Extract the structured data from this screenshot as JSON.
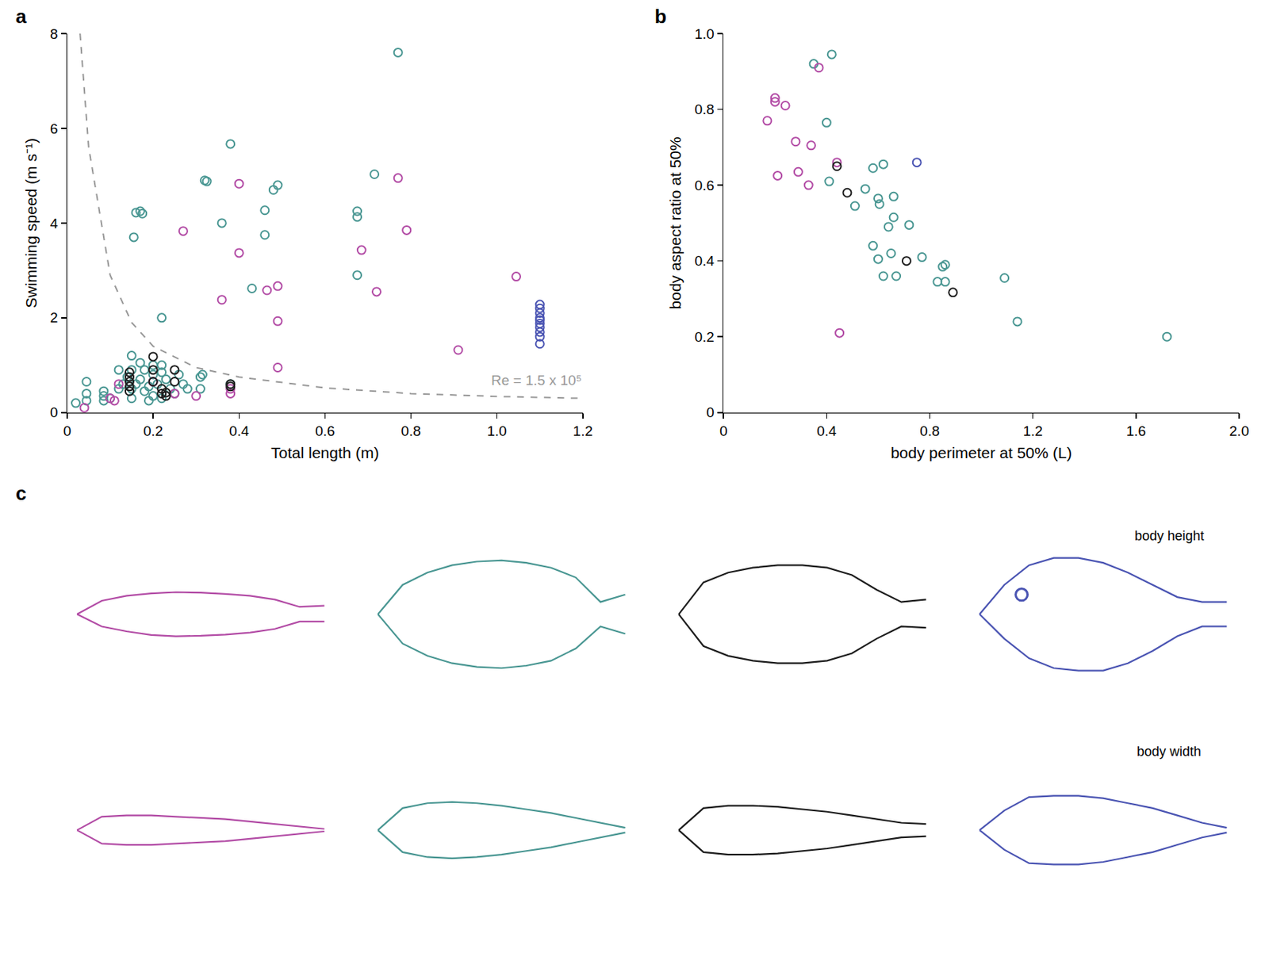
{
  "chart_data": [
    {
      "type": "scatter",
      "panel_label": "a",
      "x_label": "Total length (m)",
      "y_label": "Swimming speed (m s⁻¹)",
      "xlim": [
        0,
        1.2
      ],
      "ylim": [
        0,
        8
      ],
      "xticks": [
        0,
        0.2,
        0.4,
        0.6,
        0.8,
        {
          "value": 1,
          "label": "1.0"
        },
        1.2
      ],
      "yticks": [
        0,
        2,
        4,
        6,
        8
      ],
      "grid": false,
      "annotations": [
        "Re = 1.5 x 10⁵"
      ],
      "series": [
        {
          "color": "#4a9793",
          "marker": "circle-open",
          "x": [
            0.77,
            0.38,
            0.32,
            0.325,
            0.49,
            0.48,
            0.715,
            0.46,
            0.675,
            0.675,
            0.16,
            0.17,
            0.175,
            0.155,
            0.36,
            0.46,
            0.675,
            0.43,
            0.22,
            0.15,
            0.2,
            0.02,
            0.045,
            0.045,
            0.045,
            0.085,
            0.085,
            0.085,
            0.1,
            0.12,
            0.12,
            0.13,
            0.14,
            0.15,
            0.15,
            0.15,
            0.16,
            0.17,
            0.18,
            0.18,
            0.19,
            0.19,
            0.2,
            0.2,
            0.21,
            0.22,
            0.22,
            0.23,
            0.24,
            0.25,
            0.26,
            0.27,
            0.28,
            0.31,
            0.315,
            0.31,
            0.38,
            0.22,
            0.17
          ],
          "values": [
            7.6,
            5.67,
            4.9,
            4.88,
            4.8,
            4.7,
            5.03,
            4.27,
            4.25,
            4.13,
            4.22,
            4.25,
            4.2,
            3.7,
            4.0,
            3.75,
            2.9,
            2.62,
            2.0,
            1.2,
            1.0,
            0.2,
            0.65,
            0.4,
            0.25,
            0.45,
            0.35,
            0.25,
            0.3,
            0.5,
            0.9,
            0.6,
            0.75,
            0.9,
            0.5,
            0.3,
            0.6,
            0.7,
            0.45,
            0.9,
            0.25,
            0.55,
            0.8,
            0.35,
            0.6,
            0.3,
            1.0,
            0.7,
            0.5,
            0.4,
            0.8,
            0.6,
            0.5,
            0.75,
            0.8,
            0.5,
            0.6,
            0.85,
            1.05
          ]
        },
        {
          "color": "#b34da6",
          "marker": "circle-open",
          "x": [
            0.4,
            0.77,
            0.27,
            0.79,
            0.685,
            0.4,
            1.045,
            0.49,
            0.465,
            0.72,
            0.36,
            0.49,
            0.91,
            0.49,
            0.04,
            0.1,
            0.11,
            0.12,
            0.25,
            0.3,
            0.38,
            0.38,
            0.2
          ],
          "values": [
            4.83,
            4.95,
            3.83,
            3.85,
            3.43,
            3.37,
            2.87,
            2.67,
            2.58,
            2.55,
            2.38,
            1.93,
            1.32,
            0.95,
            0.1,
            0.3,
            0.25,
            0.6,
            0.4,
            0.35,
            0.4,
            0.5,
            0.65
          ]
        },
        {
          "color": "#1e1e1e",
          "marker": "circle-open",
          "x": [
            0.2,
            0.2,
            0.25,
            0.145,
            0.145,
            0.145,
            0.145,
            0.145,
            0.2,
            0.22,
            0.23,
            0.23,
            0.25,
            0.38,
            0.38,
            0.22
          ],
          "values": [
            1.18,
            0.9,
            0.9,
            0.85,
            0.75,
            0.65,
            0.55,
            0.45,
            0.65,
            0.5,
            0.35,
            0.42,
            0.65,
            0.55,
            0.6,
            0.4
          ]
        },
        {
          "color": "#4b55b3",
          "marker": "circle-open",
          "x": [
            1.1,
            1.1,
            1.1,
            1.1,
            1.1,
            1.1,
            1.1,
            1.1,
            1.1,
            1.1
          ],
          "values": [
            2.28,
            2.2,
            2.1,
            2.0,
            1.95,
            1.88,
            1.8,
            1.7,
            1.6,
            1.45
          ]
        },
        {
          "type": "line",
          "line_style": "dashed",
          "color": "#999999",
          "x": [
            0.03,
            0.05,
            0.1,
            0.15,
            0.2,
            0.3,
            0.4,
            0.6,
            0.8,
            1.0,
            1.2
          ],
          "values": [
            8,
            5.6,
            2.9,
            1.9,
            1.4,
            0.95,
            0.75,
            0.52,
            0.4,
            0.34,
            0.3
          ]
        }
      ]
    },
    {
      "type": "scatter",
      "panel_label": "b",
      "x_label": "body perimeter at 50% (L)",
      "y_label": "body aspect ratio at 50%",
      "xlim": [
        0,
        2
      ],
      "ylim": [
        0,
        1
      ],
      "xticks": [
        0,
        0.4,
        0.8,
        1.2,
        1.6,
        {
          "value": 2,
          "label": "2.0"
        }
      ],
      "yticks": [
        0,
        0.2,
        0.4,
        0.6,
        0.8,
        {
          "value": 1,
          "label": "1.0"
        }
      ],
      "grid": false,
      "series": [
        {
          "color": "#4a9793",
          "marker": "circle-open",
          "x": [
            0.42,
            0.35,
            0.4,
            0.58,
            0.62,
            0.55,
            0.66,
            0.6,
            0.605,
            0.41,
            0.51,
            0.66,
            0.64,
            0.72,
            0.58,
            0.65,
            0.6,
            0.77,
            0.85,
            0.86,
            0.62,
            0.67,
            0.83,
            0.86,
            1.09,
            1.14,
            1.72
          ],
          "values": [
            0.945,
            0.92,
            0.765,
            0.645,
            0.655,
            0.59,
            0.57,
            0.565,
            0.55,
            0.61,
            0.545,
            0.515,
            0.49,
            0.495,
            0.44,
            0.42,
            0.405,
            0.41,
            0.385,
            0.39,
            0.36,
            0.36,
            0.345,
            0.345,
            0.355,
            0.24,
            0.2
          ]
        },
        {
          "color": "#b34da6",
          "marker": "circle-open",
          "x": [
            0.37,
            0.2,
            0.2,
            0.24,
            0.17,
            0.28,
            0.34,
            0.44,
            0.29,
            0.21,
            0.33,
            0.45
          ],
          "values": [
            0.91,
            0.83,
            0.82,
            0.81,
            0.77,
            0.715,
            0.705,
            0.66,
            0.635,
            0.625,
            0.6,
            0.21
          ]
        },
        {
          "color": "#1e1e1e",
          "marker": "circle-open",
          "x": [
            0.44,
            0.48,
            0.71,
            0.89
          ],
          "values": [
            0.65,
            0.58,
            0.4,
            0.317
          ]
        },
        {
          "color": "#4b55b3",
          "marker": "circle-open",
          "x": [
            0.75
          ],
          "values": [
            0.66
          ]
        }
      ]
    },
    {
      "type": "outline",
      "panel_label": "c",
      "tick_labels": false,
      "xlim": [
        -0.04,
        1.05
      ],
      "ylim": [
        -0.38,
        0.38
      ],
      "x": [
        0,
        0.1,
        0.2,
        0.3,
        0.4,
        0.5,
        0.6,
        0.7,
        0.8,
        0.9,
        1.0
      ],
      "rows": [
        {
          "title": "body height",
          "series": [
            {
              "color": "#b34da6",
              "upper": [
                0,
                0.055,
                0.075,
                0.085,
                0.09,
                0.088,
                0.083,
                0.075,
                0.06,
                0.03,
                0.035
              ],
              "lower": [
                0,
                -0.05,
                -0.07,
                -0.085,
                -0.09,
                -0.088,
                -0.083,
                -0.075,
                -0.06,
                -0.03,
                -0.03
              ]
            },
            {
              "color": "#4a9793",
              "upper": [
                0,
                0.12,
                0.17,
                0.2,
                0.215,
                0.22,
                0.21,
                0.19,
                0.15,
                0.05,
                0.08
              ],
              "lower": [
                0,
                -0.12,
                -0.17,
                -0.2,
                -0.215,
                -0.22,
                -0.21,
                -0.19,
                -0.14,
                -0.05,
                -0.08
              ]
            },
            {
              "color": "#1e1e1e",
              "upper": [
                0,
                0.13,
                0.17,
                0.19,
                0.2,
                0.2,
                0.19,
                0.16,
                0.1,
                0.05,
                0.06
              ],
              "lower": [
                0,
                -0.13,
                -0.17,
                -0.19,
                -0.2,
                -0.2,
                -0.19,
                -0.16,
                -0.1,
                -0.05,
                -0.055
              ]
            },
            {
              "color": "#4b55b3",
              "upper": [
                0,
                0.12,
                0.2,
                0.23,
                0.23,
                0.21,
                0.17,
                0.12,
                0.07,
                0.05,
                0.05
              ],
              "lower": [
                0,
                -0.1,
                -0.18,
                -0.22,
                -0.23,
                -0.23,
                -0.2,
                -0.15,
                -0.09,
                -0.05,
                -0.05
              ],
              "eye": {
                "x": 0.17,
                "y": 0.08
              }
            }
          ]
        },
        {
          "title": "body width",
          "series": [
            {
              "color": "#b34da6",
              "upper": [
                0,
                0.055,
                0.06,
                0.06,
                0.055,
                0.05,
                0.045,
                0.035,
                0.025,
                0.015,
                0.005
              ],
              "lower": [
                0,
                -0.055,
                -0.06,
                -0.06,
                -0.055,
                -0.05,
                -0.045,
                -0.035,
                -0.025,
                -0.015,
                -0.005
              ]
            },
            {
              "color": "#4a9793",
              "upper": [
                0,
                0.09,
                0.11,
                0.115,
                0.11,
                0.1,
                0.085,
                0.07,
                0.05,
                0.03,
                0.01
              ],
              "lower": [
                0,
                -0.09,
                -0.11,
                -0.115,
                -0.11,
                -0.1,
                -0.085,
                -0.07,
                -0.05,
                -0.03,
                -0.01
              ]
            },
            {
              "color": "#1e1e1e",
              "upper": [
                0,
                0.09,
                0.1,
                0.1,
                0.095,
                0.085,
                0.075,
                0.06,
                0.045,
                0.03,
                0.025
              ],
              "lower": [
                0,
                -0.09,
                -0.1,
                -0.1,
                -0.095,
                -0.085,
                -0.075,
                -0.06,
                -0.045,
                -0.03,
                -0.025
              ]
            },
            {
              "color": "#4b55b3",
              "upper": [
                0,
                0.08,
                0.135,
                0.14,
                0.14,
                0.13,
                0.11,
                0.09,
                0.06,
                0.03,
                0.01
              ],
              "lower": [
                0,
                -0.08,
                -0.135,
                -0.14,
                -0.14,
                -0.13,
                -0.11,
                -0.09,
                -0.06,
                -0.03,
                -0.01
              ]
            }
          ]
        }
      ]
    }
  ]
}
